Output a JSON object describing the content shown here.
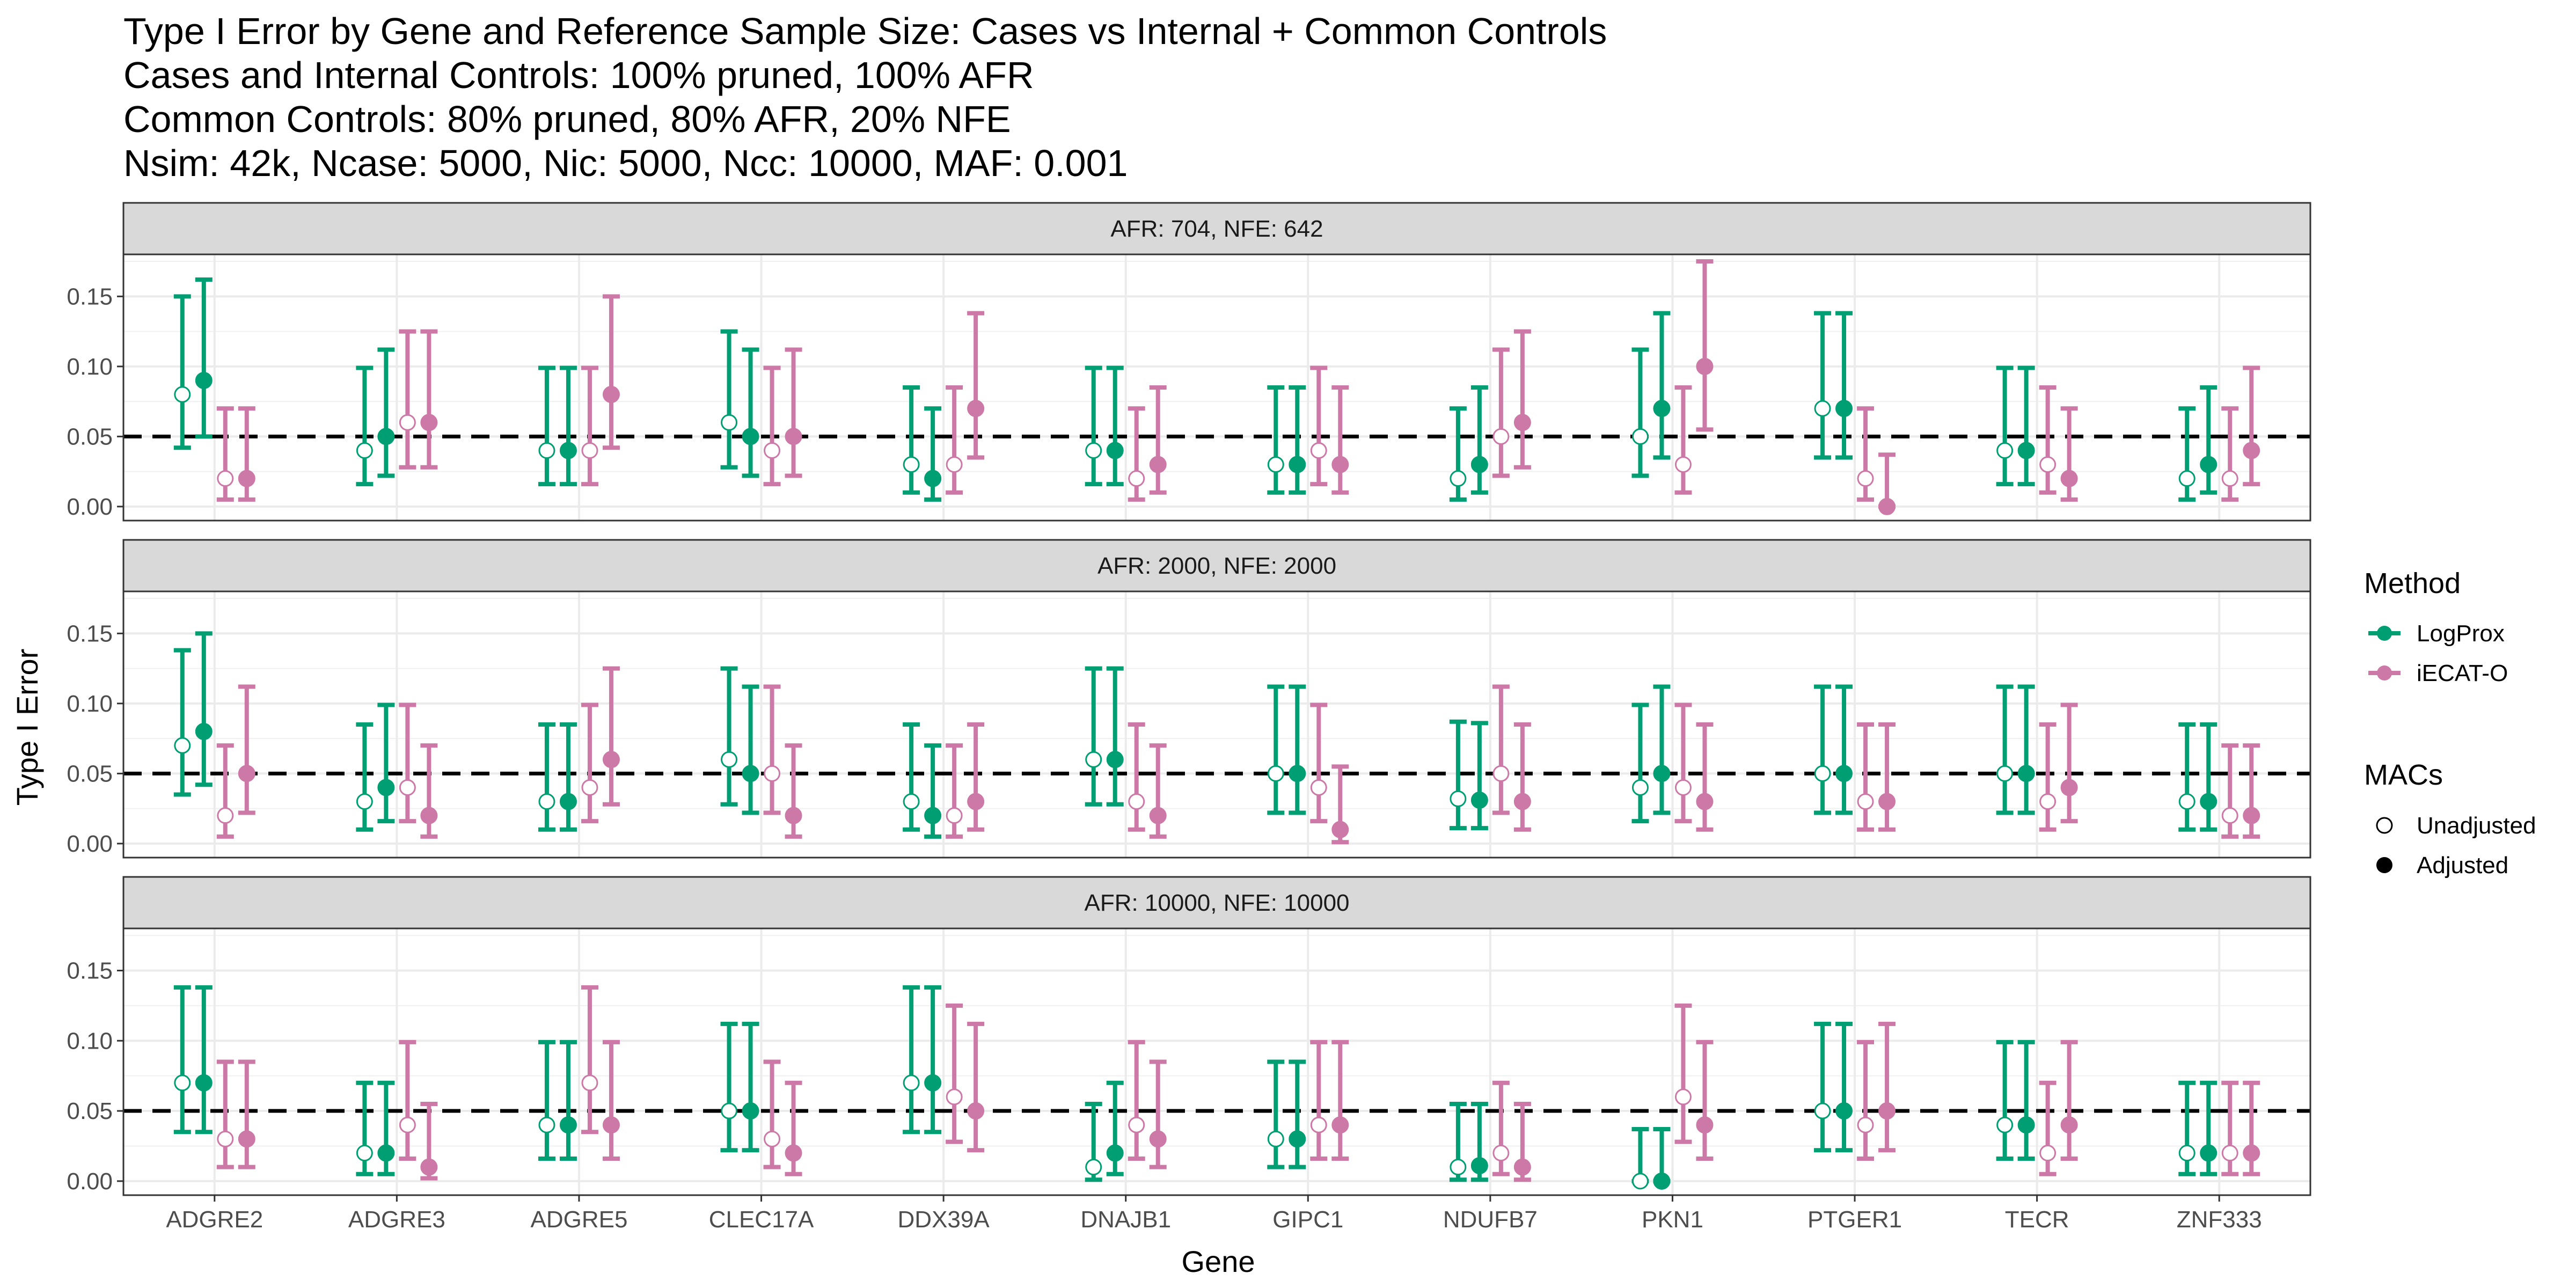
{
  "title_lines": [
    "Type I Error by Gene and Reference Sample Size: Cases vs Internal + Common Controls",
    "Cases and Internal Controls: 100% pruned, 100% AFR",
    "Common Controls: 80% pruned, 80% AFR, 20% NFE",
    "Nsim: 42k, Ncase: 5000, Nic: 5000, Ncc: 10000, MAF: 0.001"
  ],
  "colors": {
    "LogProx": "#009E73",
    "iECAT-O": "#CC79A7",
    "strip_bg": "#D9D9D9",
    "reference_line": "#000000"
  },
  "chart_data": {
    "type": "scatter",
    "subtype": "point-with-errorbars, faceted",
    "xlabel": "Gene",
    "ylabel": "Type I Error",
    "ylim": [
      -0.01,
      0.18
    ],
    "yticks": [
      "0.00",
      "0.05",
      "0.10",
      "0.15"
    ],
    "reference_line": 0.05,
    "grid": true,
    "categories": [
      "ADGRE2",
      "ADGRE3",
      "ADGRE5",
      "CLEC17A",
      "DDX39A",
      "DNAJB1",
      "GIPC1",
      "NDUFB7",
      "PKN1",
      "PTGER1",
      "TECR",
      "ZNF333"
    ],
    "series_order": [
      {
        "method": "LogProx",
        "macs": "Unadjusted"
      },
      {
        "method": "LogProx",
        "macs": "Adjusted"
      },
      {
        "method": "iECAT-O",
        "macs": "Unadjusted"
      },
      {
        "method": "iECAT-O",
        "macs": "Adjusted"
      }
    ],
    "legend": {
      "placement": "right",
      "method_title": "Method",
      "method_items": [
        "LogProx",
        "iECAT-O"
      ],
      "macs_title": "MACs",
      "macs_items": [
        "Unadjusted",
        "Adjusted"
      ]
    },
    "facets": [
      {
        "label": "AFR: 704, NFE: 642",
        "points": [
          [
            [
              0.08,
              0.042,
              0.15
            ],
            [
              0.09,
              0.05,
              0.162
            ],
            [
              0.02,
              0.005,
              0.07
            ],
            [
              0.02,
              0.005,
              0.07
            ]
          ],
          [
            [
              0.04,
              0.016,
              0.099
            ],
            [
              0.05,
              0.022,
              0.112
            ],
            [
              0.06,
              0.028,
              0.125
            ],
            [
              0.06,
              0.028,
              0.125
            ]
          ],
          [
            [
              0.04,
              0.016,
              0.099
            ],
            [
              0.04,
              0.016,
              0.099
            ],
            [
              0.04,
              0.016,
              0.099
            ],
            [
              0.08,
              0.042,
              0.15
            ]
          ],
          [
            [
              0.06,
              0.028,
              0.125
            ],
            [
              0.05,
              0.022,
              0.112
            ],
            [
              0.04,
              0.016,
              0.099
            ],
            [
              0.05,
              0.022,
              0.112
            ]
          ],
          [
            [
              0.03,
              0.01,
              0.085
            ],
            [
              0.02,
              0.005,
              0.07
            ],
            [
              0.03,
              0.01,
              0.085
            ],
            [
              0.07,
              0.035,
              0.138
            ]
          ],
          [
            [
              0.04,
              0.016,
              0.099
            ],
            [
              0.04,
              0.016,
              0.099
            ],
            [
              0.02,
              0.005,
              0.07
            ],
            [
              0.03,
              0.01,
              0.085
            ]
          ],
          [
            [
              0.03,
              0.01,
              0.085
            ],
            [
              0.03,
              0.01,
              0.085
            ],
            [
              0.04,
              0.016,
              0.099
            ],
            [
              0.03,
              0.01,
              0.085
            ]
          ],
          [
            [
              0.02,
              0.005,
              0.07
            ],
            [
              0.03,
              0.01,
              0.085
            ],
            [
              0.05,
              0.022,
              0.112
            ],
            [
              0.06,
              0.028,
              0.125
            ]
          ],
          [
            [
              0.05,
              0.022,
              0.112
            ],
            [
              0.07,
              0.035,
              0.138
            ],
            [
              0.03,
              0.01,
              0.085
            ],
            [
              0.1,
              0.055,
              0.175
            ]
          ],
          [
            [
              0.07,
              0.035,
              0.138
            ],
            [
              0.07,
              0.035,
              0.138
            ],
            [
              0.02,
              0.005,
              0.07
            ],
            [
              0.0,
              0.0,
              0.037
            ]
          ],
          [
            [
              0.04,
              0.016,
              0.099
            ],
            [
              0.04,
              0.016,
              0.099
            ],
            [
              0.03,
              0.01,
              0.085
            ],
            [
              0.02,
              0.005,
              0.07
            ]
          ],
          [
            [
              0.02,
              0.005,
              0.07
            ],
            [
              0.03,
              0.01,
              0.085
            ],
            [
              0.02,
              0.005,
              0.07
            ],
            [
              0.04,
              0.016,
              0.099
            ]
          ]
        ]
      },
      {
        "label": "AFR: 2000, NFE: 2000",
        "points": [
          [
            [
              0.07,
              0.035,
              0.138
            ],
            [
              0.08,
              0.042,
              0.15
            ],
            [
              0.02,
              0.005,
              0.07
            ],
            [
              0.05,
              0.022,
              0.112
            ]
          ],
          [
            [
              0.03,
              0.01,
              0.085
            ],
            [
              0.04,
              0.016,
              0.099
            ],
            [
              0.04,
              0.016,
              0.099
            ],
            [
              0.02,
              0.005,
              0.07
            ]
          ],
          [
            [
              0.03,
              0.01,
              0.085
            ],
            [
              0.03,
              0.01,
              0.085
            ],
            [
              0.04,
              0.016,
              0.099
            ],
            [
              0.06,
              0.028,
              0.125
            ]
          ],
          [
            [
              0.06,
              0.028,
              0.125
            ],
            [
              0.05,
              0.022,
              0.112
            ],
            [
              0.05,
              0.022,
              0.112
            ],
            [
              0.02,
              0.005,
              0.07
            ]
          ],
          [
            [
              0.03,
              0.01,
              0.085
            ],
            [
              0.02,
              0.005,
              0.07
            ],
            [
              0.02,
              0.005,
              0.07
            ],
            [
              0.03,
              0.01,
              0.085
            ]
          ],
          [
            [
              0.06,
              0.028,
              0.125
            ],
            [
              0.06,
              0.028,
              0.125
            ],
            [
              0.03,
              0.01,
              0.085
            ],
            [
              0.02,
              0.005,
              0.07
            ]
          ],
          [
            [
              0.05,
              0.022,
              0.112
            ],
            [
              0.05,
              0.022,
              0.112
            ],
            [
              0.04,
              0.016,
              0.099
            ],
            [
              0.01,
              0.001,
              0.055
            ]
          ],
          [
            [
              0.032,
              0.011,
              0.087
            ],
            [
              0.031,
              0.011,
              0.086
            ],
            [
              0.05,
              0.022,
              0.112
            ],
            [
              0.03,
              0.01,
              0.085
            ]
          ],
          [
            [
              0.04,
              0.016,
              0.099
            ],
            [
              0.05,
              0.022,
              0.112
            ],
            [
              0.04,
              0.016,
              0.099
            ],
            [
              0.03,
              0.01,
              0.085
            ]
          ],
          [
            [
              0.05,
              0.022,
              0.112
            ],
            [
              0.05,
              0.022,
              0.112
            ],
            [
              0.03,
              0.01,
              0.085
            ],
            [
              0.03,
              0.01,
              0.085
            ]
          ],
          [
            [
              0.05,
              0.022,
              0.112
            ],
            [
              0.05,
              0.022,
              0.112
            ],
            [
              0.03,
              0.01,
              0.085
            ],
            [
              0.04,
              0.016,
              0.099
            ]
          ],
          [
            [
              0.03,
              0.01,
              0.085
            ],
            [
              0.03,
              0.01,
              0.085
            ],
            [
              0.02,
              0.005,
              0.07
            ],
            [
              0.02,
              0.005,
              0.07
            ]
          ]
        ]
      },
      {
        "label": "AFR: 10000, NFE: 10000",
        "points": [
          [
            [
              0.07,
              0.035,
              0.138
            ],
            [
              0.07,
              0.035,
              0.138
            ],
            [
              0.03,
              0.01,
              0.085
            ],
            [
              0.03,
              0.01,
              0.085
            ]
          ],
          [
            [
              0.02,
              0.005,
              0.07
            ],
            [
              0.02,
              0.005,
              0.07
            ],
            [
              0.04,
              0.016,
              0.099
            ],
            [
              0.01,
              0.002,
              0.055
            ]
          ],
          [
            [
              0.04,
              0.016,
              0.099
            ],
            [
              0.04,
              0.016,
              0.099
            ],
            [
              0.07,
              0.035,
              0.138
            ],
            [
              0.04,
              0.016,
              0.099
            ]
          ],
          [
            [
              0.05,
              0.022,
              0.112
            ],
            [
              0.05,
              0.022,
              0.112
            ],
            [
              0.03,
              0.01,
              0.085
            ],
            [
              0.02,
              0.005,
              0.07
            ]
          ],
          [
            [
              0.07,
              0.035,
              0.138
            ],
            [
              0.07,
              0.035,
              0.138
            ],
            [
              0.06,
              0.028,
              0.125
            ],
            [
              0.05,
              0.022,
              0.112
            ]
          ],
          [
            [
              0.01,
              0.001,
              0.055
            ],
            [
              0.02,
              0.005,
              0.07
            ],
            [
              0.04,
              0.016,
              0.099
            ],
            [
              0.03,
              0.01,
              0.085
            ]
          ],
          [
            [
              0.03,
              0.01,
              0.085
            ],
            [
              0.03,
              0.01,
              0.085
            ],
            [
              0.04,
              0.016,
              0.099
            ],
            [
              0.04,
              0.016,
              0.099
            ]
          ],
          [
            [
              0.01,
              0.001,
              0.055
            ],
            [
              0.011,
              0.001,
              0.055
            ],
            [
              0.02,
              0.005,
              0.07
            ],
            [
              0.01,
              0.001,
              0.055
            ]
          ],
          [
            [
              0.0,
              0.0,
              0.037
            ],
            [
              0.0,
              0.0,
              0.037
            ],
            [
              0.06,
              0.028,
              0.125
            ],
            [
              0.04,
              0.016,
              0.099
            ]
          ],
          [
            [
              0.05,
              0.022,
              0.112
            ],
            [
              0.05,
              0.022,
              0.112
            ],
            [
              0.04,
              0.016,
              0.099
            ],
            [
              0.05,
              0.022,
              0.112
            ]
          ],
          [
            [
              0.04,
              0.016,
              0.099
            ],
            [
              0.04,
              0.016,
              0.099
            ],
            [
              0.02,
              0.005,
              0.07
            ],
            [
              0.04,
              0.016,
              0.099
            ]
          ],
          [
            [
              0.02,
              0.005,
              0.07
            ],
            [
              0.02,
              0.005,
              0.07
            ],
            [
              0.02,
              0.005,
              0.07
            ],
            [
              0.02,
              0.005,
              0.07
            ]
          ]
        ]
      }
    ]
  }
}
